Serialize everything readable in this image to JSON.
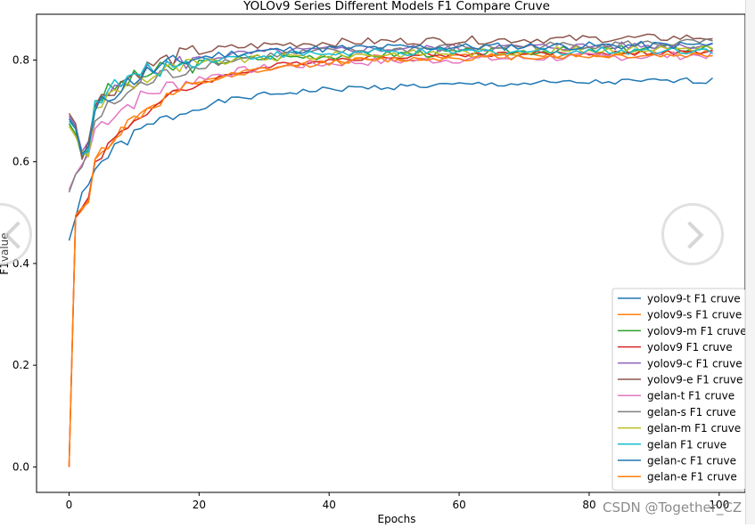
{
  "chart_data": {
    "type": "line",
    "title": "YOLOv9 Series Different Models F1 Compare Cruve",
    "xlabel": "Epochs",
    "ylabel": "F1value",
    "xlim": [
      -5,
      104
    ],
    "ylim": [
      -0.05,
      0.89
    ],
    "xticks": [
      0,
      20,
      40,
      60,
      80,
      100
    ],
    "xtick_labels": [
      "0",
      "20",
      "40",
      "60",
      "80",
      "100"
    ],
    "yticks": [
      0.0,
      0.2,
      0.4,
      0.6,
      0.8
    ],
    "ytick_labels": [
      "0.0",
      "0.2",
      "0.4",
      "0.6",
      "0.8"
    ],
    "grid": false,
    "legend_position": "lower-right",
    "series": [
      {
        "name": "yolov9-t F1 cruve",
        "color": "#1f77b4",
        "start": [
          0.445,
          0.49,
          0.54,
          0.555,
          0.585
        ],
        "final": 0.76,
        "k": 0.09,
        "early_final": 0.74,
        "noise": 0.006,
        "seed": 1
      },
      {
        "name": "yolov9-s F1 cruve",
        "color": "#ff7f0e",
        "start": [
          0.0,
          0.49,
          0.505,
          0.525,
          0.605
        ],
        "final": 0.815,
        "k": 0.085,
        "early_final": 0.8,
        "noise": 0.006,
        "seed": 2
      },
      {
        "name": "yolov9-m F1 cruve",
        "color": "#2ca02c",
        "start": [
          0.675,
          0.655,
          0.61,
          0.625,
          0.72
        ],
        "final": 0.825,
        "k": 0.12,
        "early_final": 0.8,
        "noise": 0.008,
        "seed": 3
      },
      {
        "name": "yolov9 F1 cruve",
        "color": "#d62728",
        "start": [
          0.0,
          0.49,
          0.51,
          0.53,
          0.6
        ],
        "final": 0.815,
        "k": 0.08,
        "early_final": 0.81,
        "noise": 0.005,
        "seed": 4
      },
      {
        "name": "yolov9-c F1 cruve",
        "color": "#9467bd",
        "start": [
          0.69,
          0.67,
          0.62,
          0.64,
          0.705
        ],
        "final": 0.83,
        "k": 0.12,
        "early_final": 0.815,
        "noise": 0.008,
        "seed": 5
      },
      {
        "name": "yolov9-e F1 cruve",
        "color": "#8c564b",
        "start": [
          0.695,
          0.675,
          0.605,
          0.64,
          0.71
        ],
        "final": 0.845,
        "k": 0.12,
        "early_final": 0.83,
        "noise": 0.008,
        "seed": 6
      },
      {
        "name": "gelan-t F1 cruve",
        "color": "#e377c2",
        "start": [
          0.545,
          0.575,
          0.595,
          0.615,
          0.665
        ],
        "final": 0.81,
        "k": 0.09,
        "early_final": 0.79,
        "noise": 0.008,
        "seed": 7
      },
      {
        "name": "gelan-s F1 cruve",
        "color": "#7f7f7f",
        "start": [
          0.54,
          0.575,
          0.59,
          0.625,
          0.68
        ],
        "final": 0.835,
        "k": 0.1,
        "early_final": 0.81,
        "noise": 0.008,
        "seed": 8
      },
      {
        "name": "gelan-m F1 cruve",
        "color": "#bcbd22",
        "start": [
          0.67,
          0.65,
          0.62,
          0.61,
          0.705
        ],
        "final": 0.825,
        "k": 0.12,
        "early_final": 0.8,
        "noise": 0.008,
        "seed": 9
      },
      {
        "name": "gelan F1 cruve",
        "color": "#17becf",
        "start": [
          0.68,
          0.665,
          0.615,
          0.62,
          0.72
        ],
        "final": 0.82,
        "k": 0.12,
        "early_final": 0.81,
        "noise": 0.008,
        "seed": 10
      },
      {
        "name": "gelan-c F1 cruve",
        "color": "#1f77b4",
        "start": [
          0.685,
          0.665,
          0.615,
          0.63,
          0.7
        ],
        "final": 0.83,
        "k": 0.12,
        "early_final": 0.82,
        "noise": 0.008,
        "seed": 11
      },
      {
        "name": "gelan-e F1 cruve",
        "color": "#ff7f0e",
        "start": [
          0.0,
          0.495,
          0.51,
          0.52,
          0.605
        ],
        "final": 0.81,
        "k": 0.085,
        "early_final": 0.8,
        "noise": 0.006,
        "seed": 12
      }
    ],
    "epochs": 100
  },
  "watermark": "CSDN @Together_CZ",
  "icons": {
    "prev": "chevron-left-icon",
    "next": "chevron-right-icon"
  }
}
